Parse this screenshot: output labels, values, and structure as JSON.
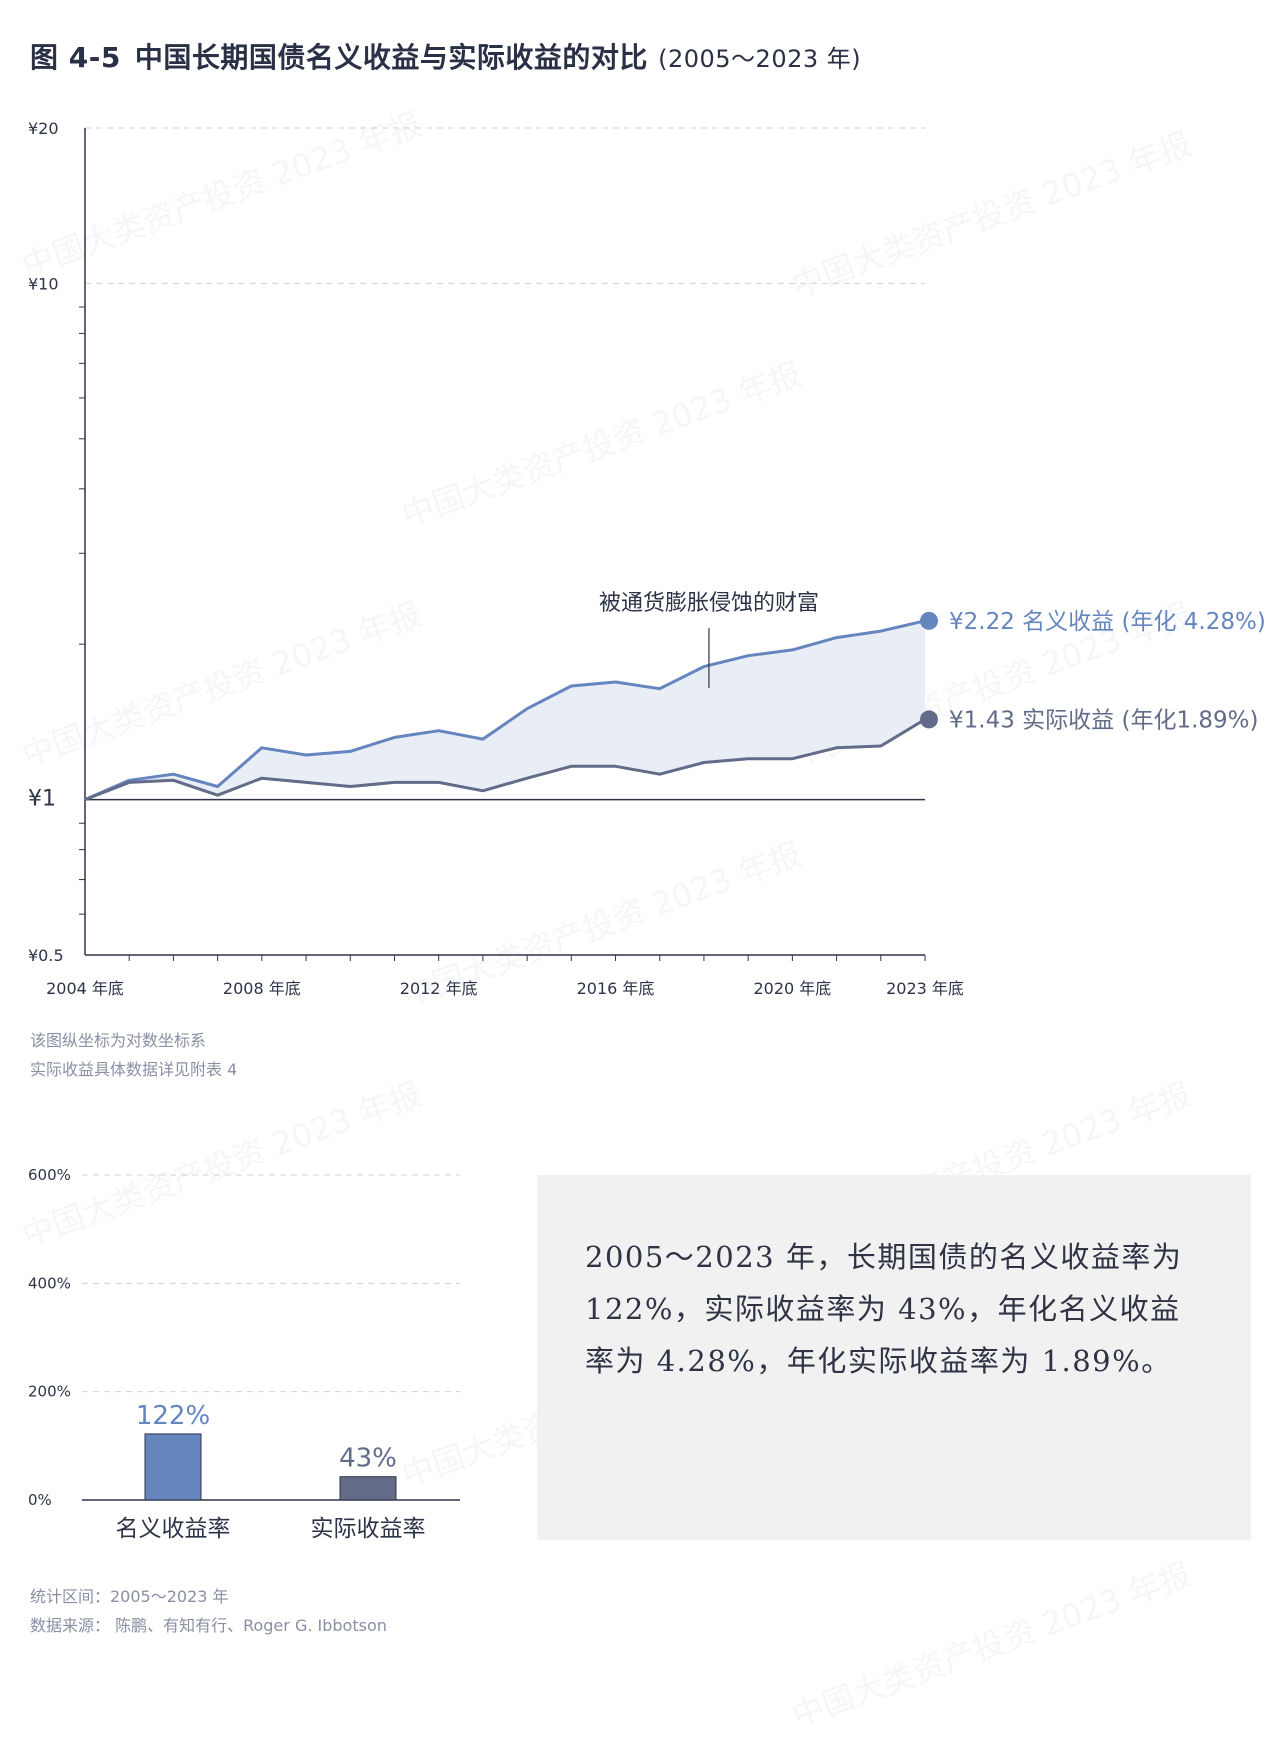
{
  "title": {
    "fig_no": "图 4-5",
    "text": "中国长期国债名义收益与实际收益的对比",
    "years": "(2005～2023 年)"
  },
  "watermark": "中国大类资产投资 2023 年报",
  "colors": {
    "nominal": "#6585bf",
    "real": "#626b87",
    "band": "#e9edf6",
    "grid": "#cfd3db",
    "axis": "#2e3448"
  },
  "chart_data": [
    {
      "type": "line",
      "scale": "log",
      "x_ticks": [
        "2004 年底",
        "2008 年底",
        "2012 年底",
        "2016 年底",
        "2020 年底",
        "2023 年底"
      ],
      "x": [
        2004,
        2005,
        2006,
        2007,
        2008,
        2009,
        2010,
        2011,
        2012,
        2013,
        2014,
        2015,
        2016,
        2017,
        2018,
        2019,
        2020,
        2021,
        2022,
        2023
      ],
      "ylim": [
        0.5,
        20
      ],
      "y_ticks": [
        "¥20",
        "¥10",
        "¥1",
        "¥0.5"
      ],
      "grid": true,
      "series": [
        {
          "key": "nominal",
          "values": [
            1.0,
            1.09,
            1.12,
            1.06,
            1.26,
            1.22,
            1.24,
            1.32,
            1.36,
            1.31,
            1.5,
            1.66,
            1.69,
            1.64,
            1.81,
            1.9,
            1.95,
            2.06,
            2.12,
            2.22
          ],
          "end_label": "¥2.22 名义收益 (年化 4.28%)"
        },
        {
          "key": "real",
          "values": [
            1.0,
            1.08,
            1.09,
            1.02,
            1.1,
            1.08,
            1.06,
            1.08,
            1.08,
            1.04,
            1.1,
            1.16,
            1.16,
            1.12,
            1.18,
            1.2,
            1.2,
            1.26,
            1.27,
            1.43
          ],
          "end_label": "¥1.43 实际收益 (年化1.89%)"
        }
      ],
      "annotation": "被通货膨胀侵蚀的财富"
    },
    {
      "type": "bar",
      "categories": [
        "名义收益率",
        "实际收益率"
      ],
      "values": [
        122,
        43
      ],
      "value_labels": [
        "122%",
        "43%"
      ],
      "ylim": [
        0,
        600
      ],
      "y_ticks": [
        "600%",
        "400%",
        "200%",
        "0%"
      ],
      "grid": true
    }
  ],
  "notes": {
    "line1": "该图纵坐标为对数坐标系",
    "line2": "实际收益具体数据详见附表 4"
  },
  "summary": "2005～2023 年，长期国债的名义收益率为 122%，实际收益率为 43%，年化名义收益率为 4.28%，年化实际收益率为 1.89%。",
  "source": {
    "period": "统计区间：2005～2023 年",
    "data_source": "数据来源： 陈鹏、有知有行、Roger G. Ibbotson"
  }
}
